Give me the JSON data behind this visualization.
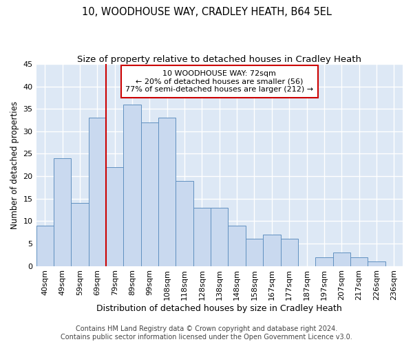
{
  "title": "10, WOODHOUSE WAY, CRADLEY HEATH, B64 5EL",
  "subtitle": "Size of property relative to detached houses in Cradley Heath",
  "xlabel": "Distribution of detached houses by size in Cradley Heath",
  "ylabel": "Number of detached properties",
  "footer1": "Contains HM Land Registry data © Crown copyright and database right 2024.",
  "footer2": "Contains public sector information licensed under the Open Government Licence v3.0.",
  "categories": [
    "40sqm",
    "49sqm",
    "59sqm",
    "69sqm",
    "79sqm",
    "89sqm",
    "99sqm",
    "108sqm",
    "118sqm",
    "128sqm",
    "138sqm",
    "148sqm",
    "158sqm",
    "167sqm",
    "177sqm",
    "187sqm",
    "197sqm",
    "207sqm",
    "217sqm",
    "226sqm",
    "236sqm"
  ],
  "values": [
    9,
    24,
    14,
    33,
    22,
    36,
    32,
    33,
    19,
    13,
    13,
    9,
    6,
    7,
    6,
    0,
    2,
    3,
    2,
    1,
    0
  ],
  "bar_color": "#c9d9ef",
  "bar_edge_color": "#6090c0",
  "property_line_x": 3.5,
  "property_line_color": "#cc0000",
  "annotation_line1": "10 WOODHOUSE WAY: 72sqm",
  "annotation_line2": "← 20% of detached houses are smaller (56)",
  "annotation_line3": "77% of semi-detached houses are larger (212) →",
  "annotation_box_color": "#cc0000",
  "ylim": [
    0,
    45
  ],
  "yticks": [
    0,
    5,
    10,
    15,
    20,
    25,
    30,
    35,
    40,
    45
  ],
  "background_color": "#dde8f5",
  "grid_color": "#ffffff",
  "title_fontsize": 10.5,
  "subtitle_fontsize": 9.5,
  "xlabel_fontsize": 9,
  "ylabel_fontsize": 8.5,
  "tick_fontsize": 8,
  "annotation_fontsize": 8,
  "footer_fontsize": 7
}
